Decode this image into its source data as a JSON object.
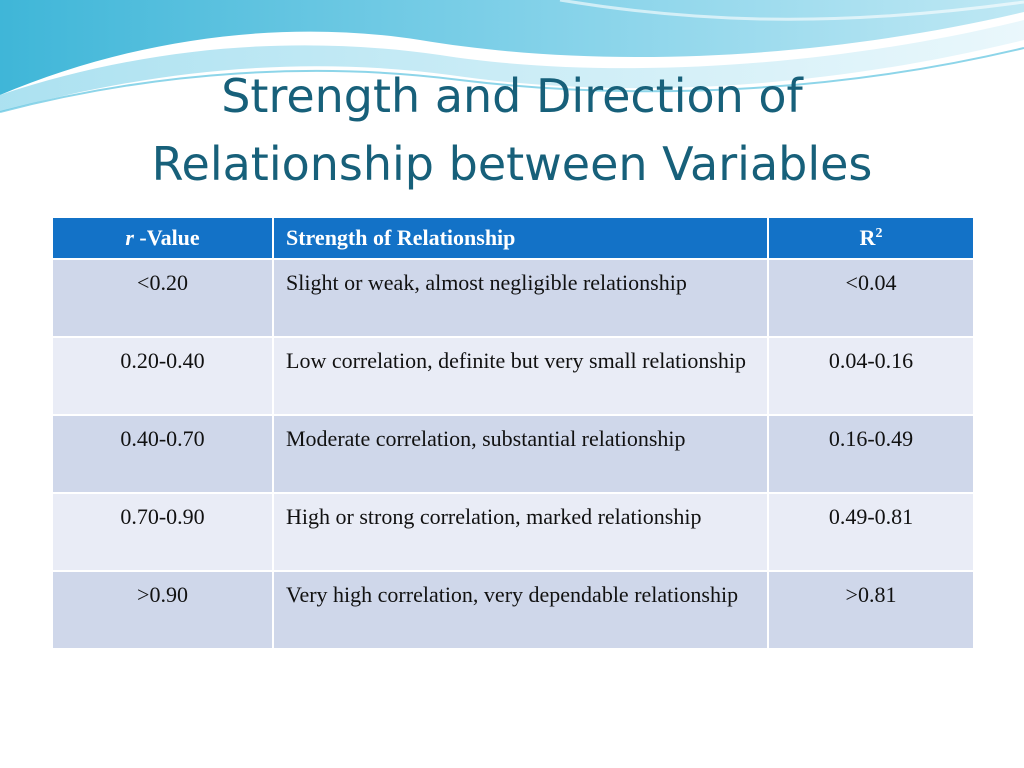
{
  "title": {
    "line1": "Strength and Direction of",
    "line2": "Relationship between Variables"
  },
  "table": {
    "headers": {
      "r_italic": "r",
      "r_rest": " -Value",
      "strength": "Strength of Relationship",
      "R": "R",
      "R_sup": "2"
    },
    "rows": [
      {
        "r": "<0.20",
        "strength": "Slight or weak, almost negligible relationship",
        "r2": "<0.04"
      },
      {
        "r": "0.20-0.40",
        "strength": "Low correlation, definite but very small relationship",
        "r2": "0.04-0.16"
      },
      {
        "r": "0.40-0.70",
        "strength": "Moderate correlation, substantial relationship",
        "r2": "0.16-0.49"
      },
      {
        "r": "0.70-0.90",
        "strength": "High or strong correlation, marked relationship",
        "r2": "0.49-0.81"
      },
      {
        "r": ">0.90",
        "strength": "Very high correlation, very dependable relationship",
        "r2": ">0.81"
      }
    ]
  },
  "colors": {
    "title": "#17607a",
    "header_bg": "#1372c7",
    "row_odd": "#cfd7ea",
    "row_even": "#e9ecf6"
  }
}
